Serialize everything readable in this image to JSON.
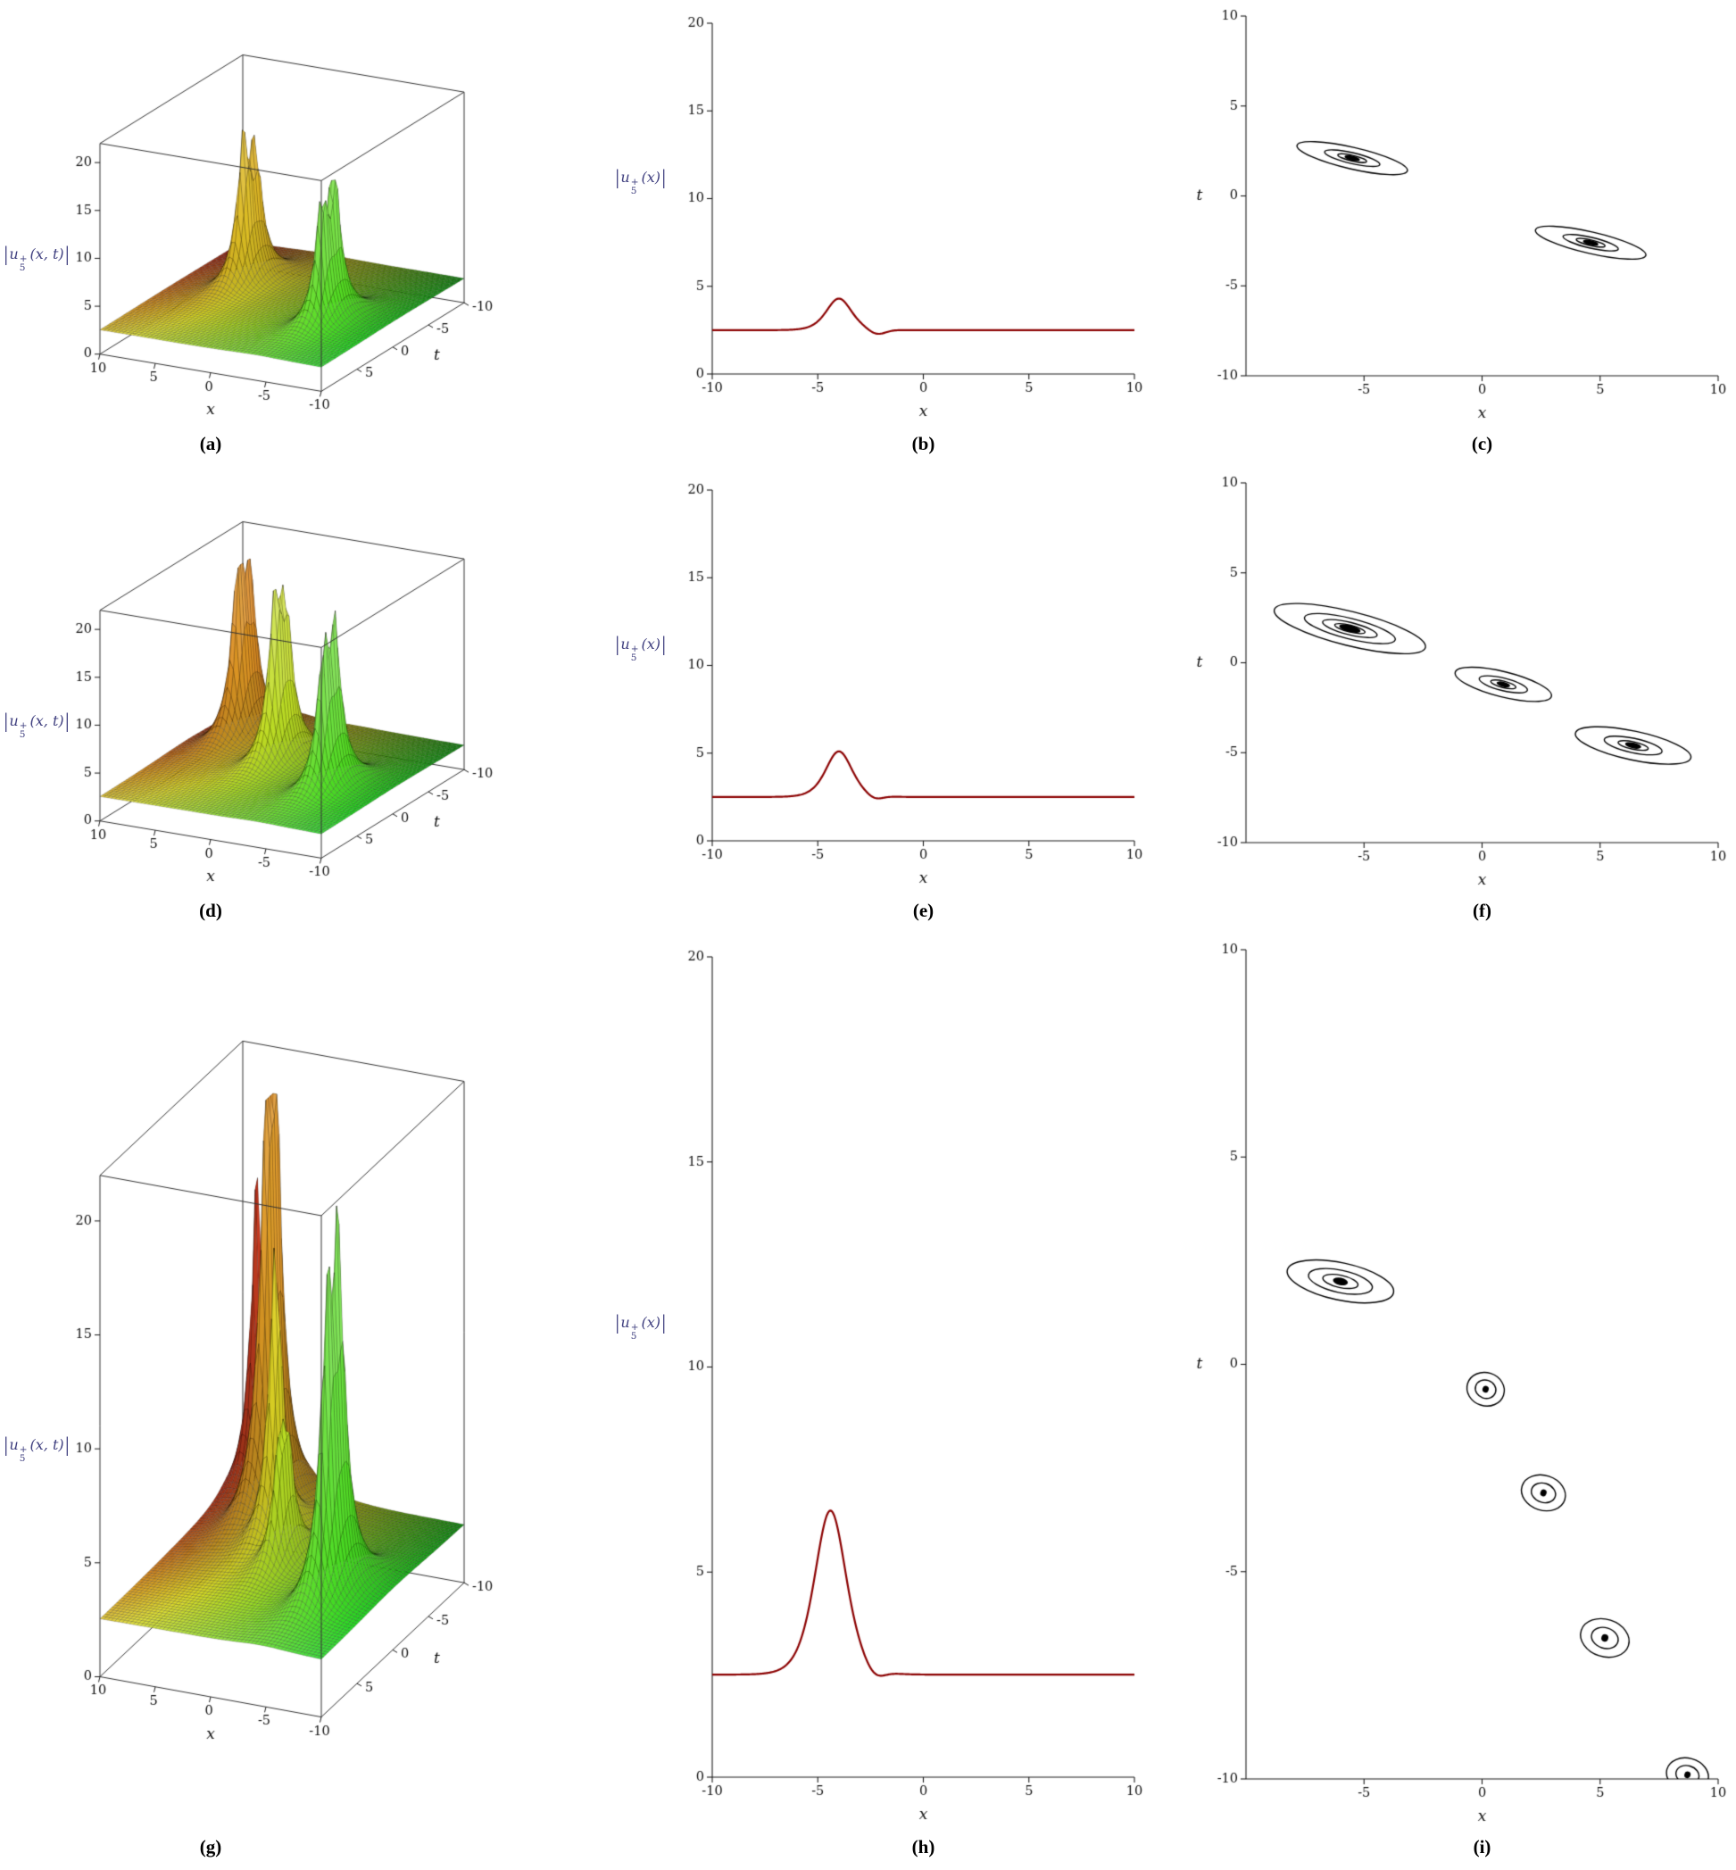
{
  "theme": {
    "background": "#ffffff",
    "axis_color": "#1a1a1a",
    "tick_label_color": "#111111",
    "curve_color": "#8b0000",
    "contour_color": "#000000",
    "math_label_color": "#3f3f7f",
    "letter_color": "#000000"
  },
  "chart_data": [
    {
      "id": "a",
      "panel_label": "(a)",
      "type": "surface3d",
      "xlabel": "x",
      "tlabel": "t",
      "xlim": [
        -10,
        10
      ],
      "tlim": [
        -10,
        10
      ],
      "zlim": [
        0,
        20
      ],
      "x_ticks": [
        10,
        5,
        0,
        -5,
        -10
      ],
      "t_ticks": [
        5,
        0,
        -5,
        -10
      ],
      "z_ticks": [
        0,
        5,
        10,
        15,
        20
      ],
      "baseline": 2.5,
      "solitons": [
        {
          "x": 4.6,
          "t": -3.3,
          "amp": 11
        },
        {
          "x": 4.6,
          "t": -1.8,
          "amp": 12.5
        },
        {
          "x": -5.5,
          "t": 1.3,
          "amp": 12.5
        },
        {
          "x": -5.5,
          "t": 2.9,
          "amp": 10.5
        }
      ],
      "zlabel": {
        "open": "|",
        "base": "u",
        "sub": "5",
        "sup": "+",
        "args": "(x, t)",
        "close": "|"
      }
    },
    {
      "id": "b",
      "panel_label": "(b)",
      "type": "line",
      "xlabel": "x",
      "xlim": [
        -10,
        10
      ],
      "ylim": [
        0,
        20
      ],
      "x_ticks": [
        -10,
        -5,
        0,
        5,
        10
      ],
      "y_ticks": [
        0,
        5,
        10,
        15,
        20
      ],
      "baseline": 2.5,
      "peak": {
        "x0": -4.0,
        "peak": 4.3,
        "s": 1.25
      },
      "dips": [
        {
          "x0": -2.2,
          "depth": 0.28,
          "w": 0.55
        }
      ],
      "ylabel": {
        "open": "|",
        "base": "u",
        "sub": "5",
        "sup": "+",
        "args": "(x)",
        "close": "|"
      }
    },
    {
      "id": "c",
      "panel_label": "(c)",
      "type": "contour",
      "xlabel": "x",
      "tlabel": "t",
      "xlim": [
        -10,
        10
      ],
      "tlim": [
        -10,
        10
      ],
      "x_ticks": [
        -5,
        0,
        5,
        10
      ],
      "t_ticks": [
        10,
        5,
        0,
        -5,
        -10
      ],
      "blobs": [
        {
          "x": -5.5,
          "t": 2.1,
          "rx": 2.4,
          "rt": 0.6,
          "angle": 13,
          "levels": [
            1,
            0.5,
            0.26
          ]
        },
        {
          "x": 4.6,
          "t": -2.6,
          "rx": 2.4,
          "rt": 0.6,
          "angle": 13,
          "levels": [
            1,
            0.5,
            0.26
          ]
        }
      ]
    },
    {
      "id": "d",
      "panel_label": "(d)",
      "type": "surface3d",
      "xlabel": "x",
      "tlabel": "t",
      "xlim": [
        -10,
        10
      ],
      "tlim": [
        -10,
        10
      ],
      "zlim": [
        0,
        20
      ],
      "x_ticks": [
        10,
        5,
        0,
        -5,
        -10
      ],
      "t_ticks": [
        5,
        0,
        -5,
        -10
      ],
      "z_ticks": [
        0,
        5,
        10,
        15,
        20
      ],
      "baseline": 2.5,
      "solitons": [
        {
          "x": 6.4,
          "t": -5.3,
          "amp": 14
        },
        {
          "x": 6.4,
          "t": -3.9,
          "amp": 15.5
        },
        {
          "x": 0.9,
          "t": -1.8,
          "amp": 13
        },
        {
          "x": 0.9,
          "t": -0.5,
          "amp": 14.5
        },
        {
          "x": -5.6,
          "t": 1.4,
          "amp": 13.5
        },
        {
          "x": -5.6,
          "t": 2.8,
          "amp": 11.5
        }
      ],
      "zlabel": {
        "open": "|",
        "base": "u",
        "sub": "5",
        "sup": "+",
        "args": "(x, t)",
        "close": "|"
      }
    },
    {
      "id": "e",
      "panel_label": "(e)",
      "type": "line",
      "xlabel": "x",
      "xlim": [
        -10,
        10
      ],
      "ylim": [
        0,
        20
      ],
      "x_ticks": [
        -10,
        -5,
        0,
        5,
        10
      ],
      "y_ticks": [
        0,
        5,
        10,
        15,
        20
      ],
      "baseline": 2.5,
      "peak": {
        "x0": -4.0,
        "peak": 5.1,
        "s": 1.2
      },
      "dips": [
        {
          "x0": -2.3,
          "depth": 0.22,
          "w": 0.5
        }
      ],
      "ylabel": {
        "open": "|",
        "base": "u",
        "sub": "5",
        "sup": "+",
        "args": "(x)",
        "close": "|"
      }
    },
    {
      "id": "f",
      "panel_label": "(f)",
      "type": "contour",
      "xlabel": "x",
      "tlabel": "t",
      "xlim": [
        -10,
        10
      ],
      "tlim": [
        -10,
        10
      ],
      "x_ticks": [
        -5,
        0,
        5,
        10
      ],
      "t_ticks": [
        10,
        5,
        0,
        -5,
        -10
      ],
      "blobs": [
        {
          "x": -5.6,
          "t": 1.9,
          "rx": 3.3,
          "rt": 0.95,
          "angle": 14,
          "levels": [
            1,
            0.6,
            0.36,
            0.2
          ]
        },
        {
          "x": 0.9,
          "t": -1.2,
          "rx": 2.1,
          "rt": 0.7,
          "angle": 14,
          "levels": [
            1,
            0.5,
            0.26
          ]
        },
        {
          "x": 6.4,
          "t": -4.6,
          "rx": 2.5,
          "rt": 0.8,
          "angle": 12,
          "levels": [
            1,
            0.5,
            0.26
          ]
        }
      ]
    },
    {
      "id": "g",
      "panel_label": "(g)",
      "type": "surface3d",
      "xlabel": "x",
      "tlabel": "t",
      "xlim": [
        -10,
        10
      ],
      "tlim": [
        -10,
        10
      ],
      "zlim": [
        0,
        20
      ],
      "x_ticks": [
        10,
        5,
        0,
        -5,
        -10
      ],
      "t_ticks": [
        5,
        0,
        -5,
        -10
      ],
      "z_ticks": [
        0,
        5,
        10,
        15,
        20
      ],
      "baseline": 2.5,
      "solitons": [
        {
          "x": 8.6,
          "t": -9.9,
          "amp": 12
        },
        {
          "x": 5.2,
          "t": -7.0,
          "amp": 15
        },
        {
          "x": 5.2,
          "t": -5.9,
          "amp": 12
        },
        {
          "x": 2.6,
          "t": -3.1,
          "amp": 11
        },
        {
          "x": 0.2,
          "t": -0.9,
          "amp": 4.5
        },
        {
          "x": 0.2,
          "t": 0.1,
          "amp": 3.5
        },
        {
          "x": -6.0,
          "t": 1.5,
          "amp": 12.5
        },
        {
          "x": -6.0,
          "t": 2.9,
          "amp": 10
        }
      ],
      "zlabel": {
        "open": "|",
        "base": "u",
        "sub": "5",
        "sup": "+",
        "args": "(x, t)",
        "close": "|"
      }
    },
    {
      "id": "h",
      "panel_label": "(h)",
      "type": "line",
      "xlabel": "x",
      "xlim": [
        -10,
        10
      ],
      "ylim": [
        0,
        20
      ],
      "x_ticks": [
        -10,
        -5,
        0,
        5,
        10
      ],
      "y_ticks": [
        0,
        5,
        10,
        15,
        20
      ],
      "baseline": 2.5,
      "peak": {
        "x0": -4.4,
        "peak": 6.5,
        "s": 1.0
      },
      "dips": [
        {
          "x0": -2.3,
          "depth": 0.2,
          "w": 0.6
        }
      ],
      "ylabel": {
        "open": "|",
        "base": "u",
        "sub": "5",
        "sup": "+",
        "args": "(x)",
        "close": "|"
      }
    },
    {
      "id": "i",
      "panel_label": "(i)",
      "type": "contour",
      "xlabel": "x",
      "tlabel": "t",
      "xlim": [
        -10,
        10
      ],
      "tlim": [
        -10,
        10
      ],
      "x_ticks": [
        -5,
        0,
        5,
        10
      ],
      "t_ticks": [
        10,
        5,
        0,
        -5,
        -10
      ],
      "blobs": [
        {
          "x": -6.0,
          "t": 2.0,
          "rx": 2.3,
          "rt": 0.45,
          "angle": 12,
          "levels": [
            1,
            0.6,
            0.33
          ]
        },
        {
          "x": 0.15,
          "t": -0.6,
          "rx": 0.8,
          "rt": 0.4,
          "angle": 18,
          "levels": [
            1,
            0.55
          ]
        },
        {
          "x": 2.6,
          "t": -3.1,
          "rx": 0.95,
          "rt": 0.42,
          "angle": 18,
          "levels": [
            1,
            0.55
          ]
        },
        {
          "x": 5.2,
          "t": -6.6,
          "rx": 1.05,
          "rt": 0.45,
          "angle": 18,
          "levels": [
            1,
            0.55
          ]
        },
        {
          "x": 8.7,
          "t": -9.9,
          "rx": 0.9,
          "rt": 0.4,
          "angle": 15,
          "levels": [
            1,
            0.55
          ]
        }
      ]
    }
  ]
}
